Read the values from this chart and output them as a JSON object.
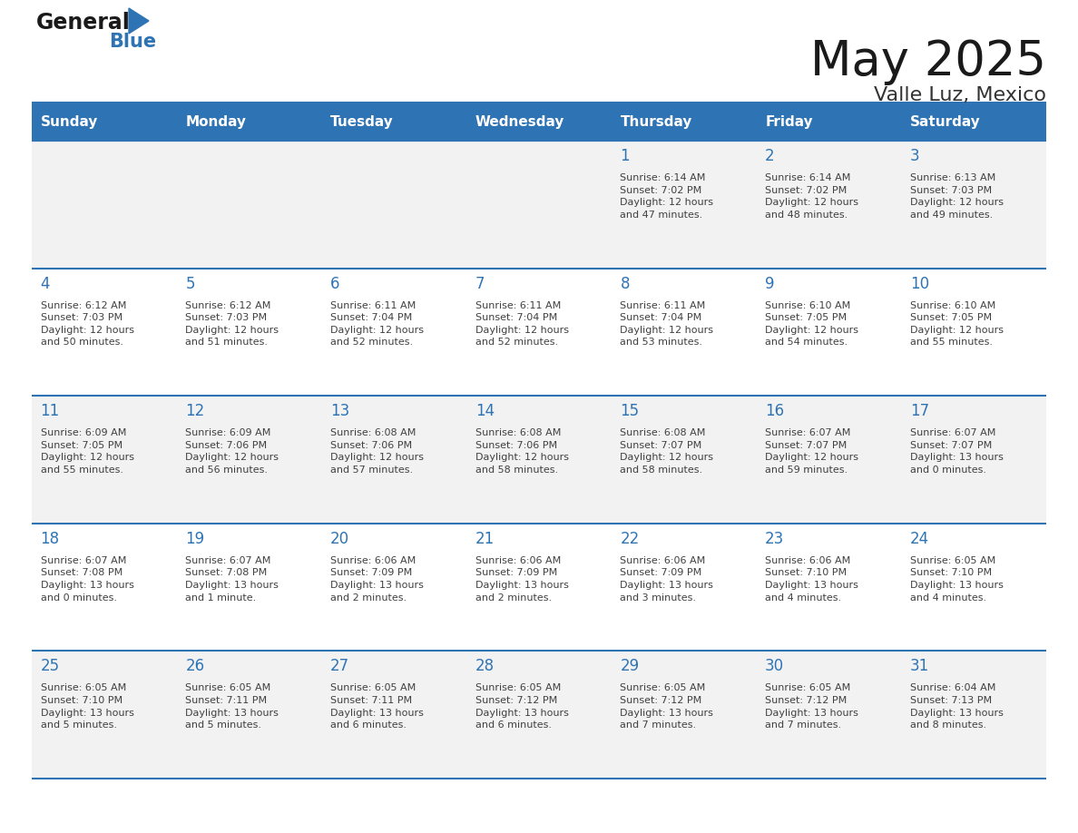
{
  "title": "May 2025",
  "subtitle": "Valle Luz, Mexico",
  "header_color": "#2E74B5",
  "header_text_color": "#FFFFFF",
  "cell_bg_even": "#F2F2F2",
  "cell_bg_odd": "#FFFFFF",
  "day_number_color": "#2E74B5",
  "text_color": "#404040",
  "line_color": "#2E74B5",
  "days_of_week": [
    "Sunday",
    "Monday",
    "Tuesday",
    "Wednesday",
    "Thursday",
    "Friday",
    "Saturday"
  ],
  "weeks": [
    [
      {
        "day": null,
        "info": null
      },
      {
        "day": null,
        "info": null
      },
      {
        "day": null,
        "info": null
      },
      {
        "day": null,
        "info": null
      },
      {
        "day": "1",
        "info": "Sunrise: 6:14 AM\nSunset: 7:02 PM\nDaylight: 12 hours\nand 47 minutes."
      },
      {
        "day": "2",
        "info": "Sunrise: 6:14 AM\nSunset: 7:02 PM\nDaylight: 12 hours\nand 48 minutes."
      },
      {
        "day": "3",
        "info": "Sunrise: 6:13 AM\nSunset: 7:03 PM\nDaylight: 12 hours\nand 49 minutes."
      }
    ],
    [
      {
        "day": "4",
        "info": "Sunrise: 6:12 AM\nSunset: 7:03 PM\nDaylight: 12 hours\nand 50 minutes."
      },
      {
        "day": "5",
        "info": "Sunrise: 6:12 AM\nSunset: 7:03 PM\nDaylight: 12 hours\nand 51 minutes."
      },
      {
        "day": "6",
        "info": "Sunrise: 6:11 AM\nSunset: 7:04 PM\nDaylight: 12 hours\nand 52 minutes."
      },
      {
        "day": "7",
        "info": "Sunrise: 6:11 AM\nSunset: 7:04 PM\nDaylight: 12 hours\nand 52 minutes."
      },
      {
        "day": "8",
        "info": "Sunrise: 6:11 AM\nSunset: 7:04 PM\nDaylight: 12 hours\nand 53 minutes."
      },
      {
        "day": "9",
        "info": "Sunrise: 6:10 AM\nSunset: 7:05 PM\nDaylight: 12 hours\nand 54 minutes."
      },
      {
        "day": "10",
        "info": "Sunrise: 6:10 AM\nSunset: 7:05 PM\nDaylight: 12 hours\nand 55 minutes."
      }
    ],
    [
      {
        "day": "11",
        "info": "Sunrise: 6:09 AM\nSunset: 7:05 PM\nDaylight: 12 hours\nand 55 minutes."
      },
      {
        "day": "12",
        "info": "Sunrise: 6:09 AM\nSunset: 7:06 PM\nDaylight: 12 hours\nand 56 minutes."
      },
      {
        "day": "13",
        "info": "Sunrise: 6:08 AM\nSunset: 7:06 PM\nDaylight: 12 hours\nand 57 minutes."
      },
      {
        "day": "14",
        "info": "Sunrise: 6:08 AM\nSunset: 7:06 PM\nDaylight: 12 hours\nand 58 minutes."
      },
      {
        "day": "15",
        "info": "Sunrise: 6:08 AM\nSunset: 7:07 PM\nDaylight: 12 hours\nand 58 minutes."
      },
      {
        "day": "16",
        "info": "Sunrise: 6:07 AM\nSunset: 7:07 PM\nDaylight: 12 hours\nand 59 minutes."
      },
      {
        "day": "17",
        "info": "Sunrise: 6:07 AM\nSunset: 7:07 PM\nDaylight: 13 hours\nand 0 minutes."
      }
    ],
    [
      {
        "day": "18",
        "info": "Sunrise: 6:07 AM\nSunset: 7:08 PM\nDaylight: 13 hours\nand 0 minutes."
      },
      {
        "day": "19",
        "info": "Sunrise: 6:07 AM\nSunset: 7:08 PM\nDaylight: 13 hours\nand 1 minute."
      },
      {
        "day": "20",
        "info": "Sunrise: 6:06 AM\nSunset: 7:09 PM\nDaylight: 13 hours\nand 2 minutes."
      },
      {
        "day": "21",
        "info": "Sunrise: 6:06 AM\nSunset: 7:09 PM\nDaylight: 13 hours\nand 2 minutes."
      },
      {
        "day": "22",
        "info": "Sunrise: 6:06 AM\nSunset: 7:09 PM\nDaylight: 13 hours\nand 3 minutes."
      },
      {
        "day": "23",
        "info": "Sunrise: 6:06 AM\nSunset: 7:10 PM\nDaylight: 13 hours\nand 4 minutes."
      },
      {
        "day": "24",
        "info": "Sunrise: 6:05 AM\nSunset: 7:10 PM\nDaylight: 13 hours\nand 4 minutes."
      }
    ],
    [
      {
        "day": "25",
        "info": "Sunrise: 6:05 AM\nSunset: 7:10 PM\nDaylight: 13 hours\nand 5 minutes."
      },
      {
        "day": "26",
        "info": "Sunrise: 6:05 AM\nSunset: 7:11 PM\nDaylight: 13 hours\nand 5 minutes."
      },
      {
        "day": "27",
        "info": "Sunrise: 6:05 AM\nSunset: 7:11 PM\nDaylight: 13 hours\nand 6 minutes."
      },
      {
        "day": "28",
        "info": "Sunrise: 6:05 AM\nSunset: 7:12 PM\nDaylight: 13 hours\nand 6 minutes."
      },
      {
        "day": "29",
        "info": "Sunrise: 6:05 AM\nSunset: 7:12 PM\nDaylight: 13 hours\nand 7 minutes."
      },
      {
        "day": "30",
        "info": "Sunrise: 6:05 AM\nSunset: 7:12 PM\nDaylight: 13 hours\nand 7 minutes."
      },
      {
        "day": "31",
        "info": "Sunrise: 6:04 AM\nSunset: 7:13 PM\nDaylight: 13 hours\nand 8 minutes."
      }
    ]
  ],
  "fig_width": 11.88,
  "fig_height": 9.18,
  "dpi": 100,
  "title_fontsize": 38,
  "subtitle_fontsize": 16,
  "dow_fontsize": 11,
  "day_num_fontsize": 12,
  "info_fontsize": 8,
  "logo_general_fontsize": 17,
  "logo_blue_fontsize": 15
}
